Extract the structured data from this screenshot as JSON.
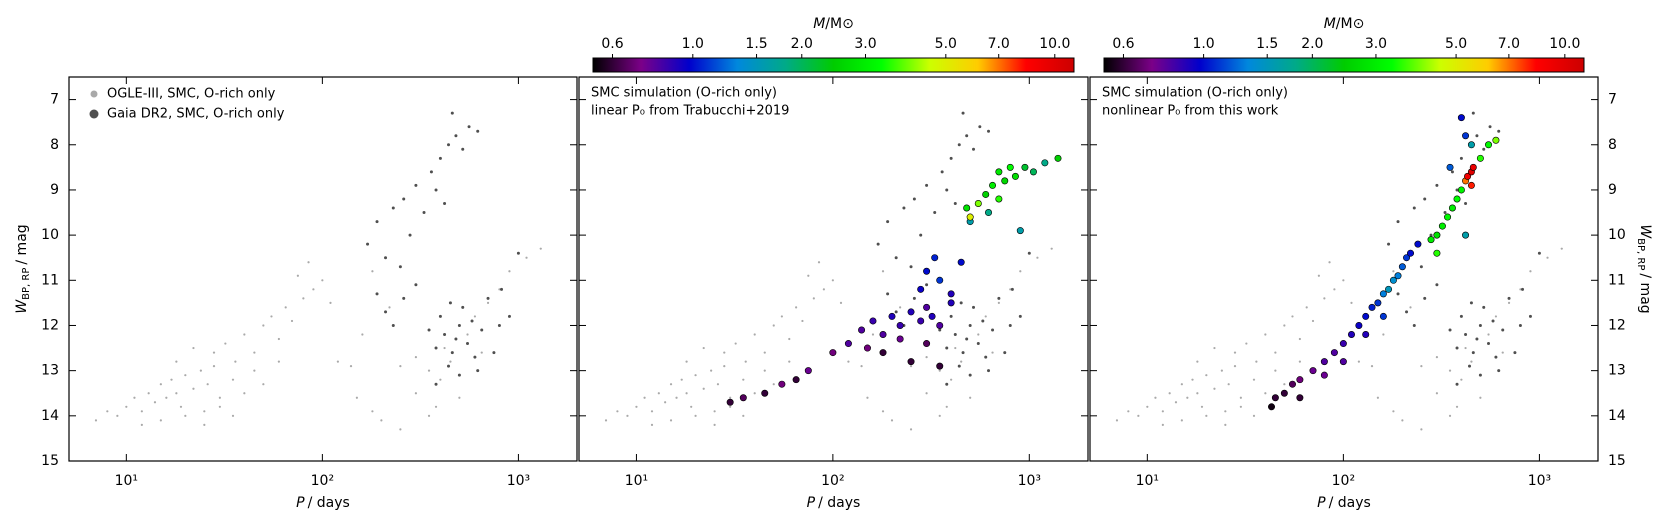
{
  "chart_data": [
    {
      "type": "scatter",
      "xlog": true,
      "xlim": [
        5.1,
        1990
      ],
      "ylim": [
        15,
        6.5
      ],
      "xticks": [
        {
          "value": 10,
          "label": "10¹"
        },
        {
          "value": 100,
          "label": "10²"
        },
        {
          "value": 1000,
          "label": "10³"
        }
      ],
      "yticks": [
        7,
        8,
        9,
        10,
        11,
        12,
        13,
        14,
        15
      ],
      "xlabel": {
        "symbol": "P",
        "unit": "/ days"
      },
      "ylabel": {
        "symbol": "W",
        "subscript": "BP, RP",
        "unit": "/ mag"
      },
      "legend": "upper left",
      "series": [
        {
          "name": "OGLE-III, SMC, O-rich only",
          "color": "#a9a9a9",
          "x": [
            7,
            8,
            9,
            10,
            11,
            12,
            13,
            14,
            15,
            16,
            17,
            18,
            19,
            20,
            22,
            24,
            26,
            28,
            30,
            20,
            25,
            15,
            12,
            30,
            35,
            28,
            32,
            36,
            40,
            45,
            50,
            55,
            60,
            65,
            70,
            80,
            90,
            100,
            45,
            50,
            40,
            60,
            110,
            75,
            85,
            120,
            150,
            180,
            200,
            250,
            300,
            350,
            400,
            450,
            500,
            350,
            420,
            380,
            550,
            600,
            700,
            800,
            900,
            1100,
            1300,
            650,
            300,
            250,
            160,
            140,
            25,
            35,
            180,
            220,
            18,
            22
          ],
          "values": [
            14.1,
            13.9,
            14.0,
            13.8,
            13.6,
            13.9,
            13.5,
            13.7,
            13.3,
            13.6,
            13.2,
            13.5,
            13.8,
            13.1,
            13.4,
            13.0,
            13.3,
            12.9,
            13.6,
            14.0,
            13.9,
            14.1,
            14.2,
            13.8,
            13.2,
            12.6,
            12.4,
            12.8,
            12.2,
            12.6,
            12.0,
            11.8,
            12.3,
            11.6,
            11.9,
            11.4,
            11.2,
            11.0,
            13.0,
            13.3,
            13.5,
            12.8,
            11.5,
            10.9,
            10.6,
            12.8,
            13.6,
            13.9,
            14.1,
            14.3,
            13.5,
            13.0,
            13.2,
            12.8,
            13.6,
            14.0,
            12.5,
            13.8,
            12.2,
            11.8,
            11.5,
            11.2,
            10.8,
            10.5,
            10.3,
            12.6,
            12.7,
            12.9,
            12.2,
            12.9,
            14.2,
            14.0,
            10.8,
            11.6,
            12.8,
            12.5
          ]
        },
        {
          "name": "Gaia DR2, SMC, O-rich only",
          "color": "#4f4f4f",
          "x": [
            170,
            190,
            210,
            230,
            260,
            280,
            300,
            330,
            360,
            400,
            440,
            480,
            520,
            560,
            620,
            460,
            380,
            420,
            250,
            190,
            210,
            230,
            260,
            300,
            350,
            380,
            400,
            420,
            450,
            480,
            500,
            520,
            550,
            580,
            600,
            650,
            700,
            750,
            800,
            900,
            440,
            500,
            380,
            620,
            460,
            1000,
            820
          ],
          "values": [
            10.2,
            9.7,
            10.5,
            9.4,
            9.2,
            10.0,
            8.9,
            9.5,
            8.6,
            8.3,
            8.0,
            7.8,
            8.1,
            7.6,
            7.7,
            7.3,
            9.0,
            9.3,
            10.7,
            11.3,
            11.7,
            12.0,
            11.4,
            11.1,
            12.1,
            12.5,
            11.8,
            12.2,
            11.5,
            12.3,
            12.0,
            11.6,
            12.4,
            11.9,
            12.7,
            12.1,
            11.4,
            12.6,
            12.0,
            11.8,
            12.9,
            13.1,
            13.3,
            13.0,
            12.6,
            10.4,
            11.2
          ]
        }
      ]
    },
    {
      "type": "scatter",
      "xlog": true,
      "xlim": [
        5.1,
        1990
      ],
      "ylim": [
        15,
        6.5
      ],
      "xticks": [
        {
          "value": 10,
          "label": "10¹"
        },
        {
          "value": 100,
          "label": "10²"
        },
        {
          "value": 1000,
          "label": "10³"
        }
      ],
      "yticks": [
        7,
        8,
        9,
        10,
        11,
        12,
        13,
        14,
        15
      ],
      "xlabel": {
        "symbol": "P",
        "unit": "/ days"
      },
      "annotations": [
        "SMC simulation (O-rich only)",
        "linear P₀ from Trabucchi+2019"
      ],
      "colorbar": {
        "label": {
          "symbol": "M",
          "unit": "/M⊙"
        },
        "clim": [
          0.53,
          11.3
        ],
        "log": true,
        "ticks": [
          0.6,
          {
            "value": 1,
            "label": "1.0"
          },
          1.5,
          {
            "value": 2,
            "label": "2.0"
          },
          {
            "value": 3,
            "label": "3.0"
          },
          {
            "value": 5,
            "label": "5.0"
          },
          {
            "value": 7,
            "label": "7.0"
          },
          {
            "value": 10,
            "label": "10.0"
          }
        ],
        "colormap": [
          "#000000",
          "#7b0088",
          "#0000cc",
          "#0088dd",
          "#00aa88",
          "#00cc00",
          "#00ff00",
          "#ccff00",
          "#ffcc00",
          "#ff0000",
          "#cc0000"
        ]
      },
      "series": [
        {
          "x": [
            30,
            35,
            45,
            55,
            65,
            75,
            100,
            120,
            140,
            160,
            180,
            200,
            220,
            250,
            280,
            300,
            320,
            350,
            400,
            180,
            250,
            300,
            350,
            220,
            150,
            280,
            300,
            330,
            350,
            400,
            450,
            500,
            480,
            500,
            550,
            600,
            650,
            700,
            750,
            800,
            850,
            950,
            1050,
            1200,
            1400,
            620,
            900,
            700
          ],
          "values": [
            13.7,
            13.6,
            13.5,
            13.3,
            13.2,
            13.0,
            12.6,
            12.4,
            12.1,
            11.9,
            12.2,
            11.8,
            12.0,
            11.7,
            11.9,
            11.6,
            11.8,
            12.0,
            11.5,
            12.6,
            12.8,
            12.4,
            12.9,
            12.3,
            12.5,
            11.2,
            10.8,
            10.5,
            11.0,
            11.3,
            10.6,
            9.7,
            9.4,
            9.6,
            9.3,
            9.1,
            8.9,
            9.2,
            8.8,
            8.5,
            8.7,
            8.5,
            8.6,
            8.4,
            8.3,
            9.5,
            9.9,
            8.6
          ],
          "mass": [
            0.6,
            0.65,
            0.6,
            0.7,
            0.6,
            0.75,
            0.7,
            0.8,
            0.8,
            0.85,
            0.8,
            0.9,
            0.85,
            0.9,
            0.85,
            0.8,
            0.9,
            0.8,
            0.9,
            0.6,
            0.6,
            0.65,
            0.6,
            0.75,
            0.7,
            0.95,
            1.0,
            1.05,
            1.1,
            0.9,
            1.0,
            1.6,
            2.8,
            5.0,
            4.0,
            2.5,
            3.0,
            3.5,
            2.6,
            3.2,
            2.7,
            2.2,
            2.0,
            1.8,
            2.5,
            1.8,
            1.6,
            2.9
          ]
        }
      ]
    },
    {
      "type": "scatter",
      "xlog": true,
      "xlim": [
        5.1,
        1990
      ],
      "ylim": [
        15,
        6.5
      ],
      "xticks": [
        {
          "value": 10,
          "label": "10¹"
        },
        {
          "value": 100,
          "label": "10²"
        },
        {
          "value": 1000,
          "label": "10³"
        }
      ],
      "yticks": [
        7,
        8,
        9,
        10,
        11,
        12,
        13,
        14,
        15
      ],
      "xlabel": {
        "symbol": "P",
        "unit": "/ days"
      },
      "ylabel": {
        "symbol": "W",
        "subscript": "BP, RP",
        "unit": "/ mag"
      },
      "annotations": [
        "SMC simulation (O-rich only)",
        "nonlinear P₀ from this work"
      ],
      "colorbar": {
        "label": {
          "symbol": "M",
          "unit": "/M⊙"
        },
        "clim": [
          0.53,
          11.3
        ],
        "log": true,
        "ticks": [
          0.6,
          {
            "value": 1,
            "label": "1.0"
          },
          1.5,
          {
            "value": 2,
            "label": "2.0"
          },
          {
            "value": 3,
            "label": "3.0"
          },
          {
            "value": 5,
            "label": "5.0"
          },
          {
            "value": 7,
            "label": "7.0"
          },
          {
            "value": 10,
            "label": "10.0"
          }
        ],
        "colormap": [
          "#000000",
          "#7b0088",
          "#0000cc",
          "#0088dd",
          "#00aa88",
          "#00cc00",
          "#00ff00",
          "#ccff00",
          "#ffcc00",
          "#ff0000",
          "#cc0000"
        ]
      },
      "series": [
        {
          "x": [
            43,
            45,
            50,
            55,
            60,
            70,
            80,
            90,
            100,
            110,
            120,
            130,
            140,
            150,
            160,
            170,
            180,
            190,
            200,
            210,
            220,
            240,
            60,
            80,
            100,
            130,
            160,
            300,
            320,
            340,
            360,
            380,
            400,
            420,
            430,
            450,
            460,
            450,
            500,
            550,
            600,
            400,
            420,
            450,
            350,
            280,
            420,
            300
          ],
          "values": [
            13.8,
            13.6,
            13.5,
            13.3,
            13.2,
            13.0,
            12.8,
            12.6,
            12.4,
            12.2,
            12.0,
            11.8,
            11.6,
            11.5,
            11.3,
            11.2,
            11.0,
            10.9,
            10.7,
            10.5,
            10.4,
            10.2,
            13.6,
            13.1,
            12.8,
            12.2,
            11.8,
            10.0,
            9.8,
            9.6,
            9.4,
            9.2,
            9.0,
            8.8,
            8.7,
            8.6,
            8.5,
            8.9,
            8.3,
            8.0,
            7.9,
            7.4,
            7.8,
            8.0,
            8.5,
            10.1,
            10.0,
            10.4
          ],
          "mass": [
            0.55,
            0.6,
            0.6,
            0.65,
            0.7,
            0.75,
            0.8,
            0.8,
            0.85,
            0.9,
            0.95,
            1.0,
            1.05,
            1.1,
            1.3,
            1.5,
            1.4,
            1.3,
            1.2,
            1.1,
            1.0,
            1.0,
            0.6,
            0.75,
            0.8,
            0.9,
            1.1,
            2.8,
            3.0,
            3.2,
            3.0,
            3.3,
            3.1,
            7.0,
            9.0,
            10.0,
            9.5,
            8.0,
            3.5,
            3.2,
            4.0,
            1.0,
            1.1,
            1.6,
            1.2,
            3.0,
            1.6,
            3.5
          ]
        }
      ]
    }
  ]
}
